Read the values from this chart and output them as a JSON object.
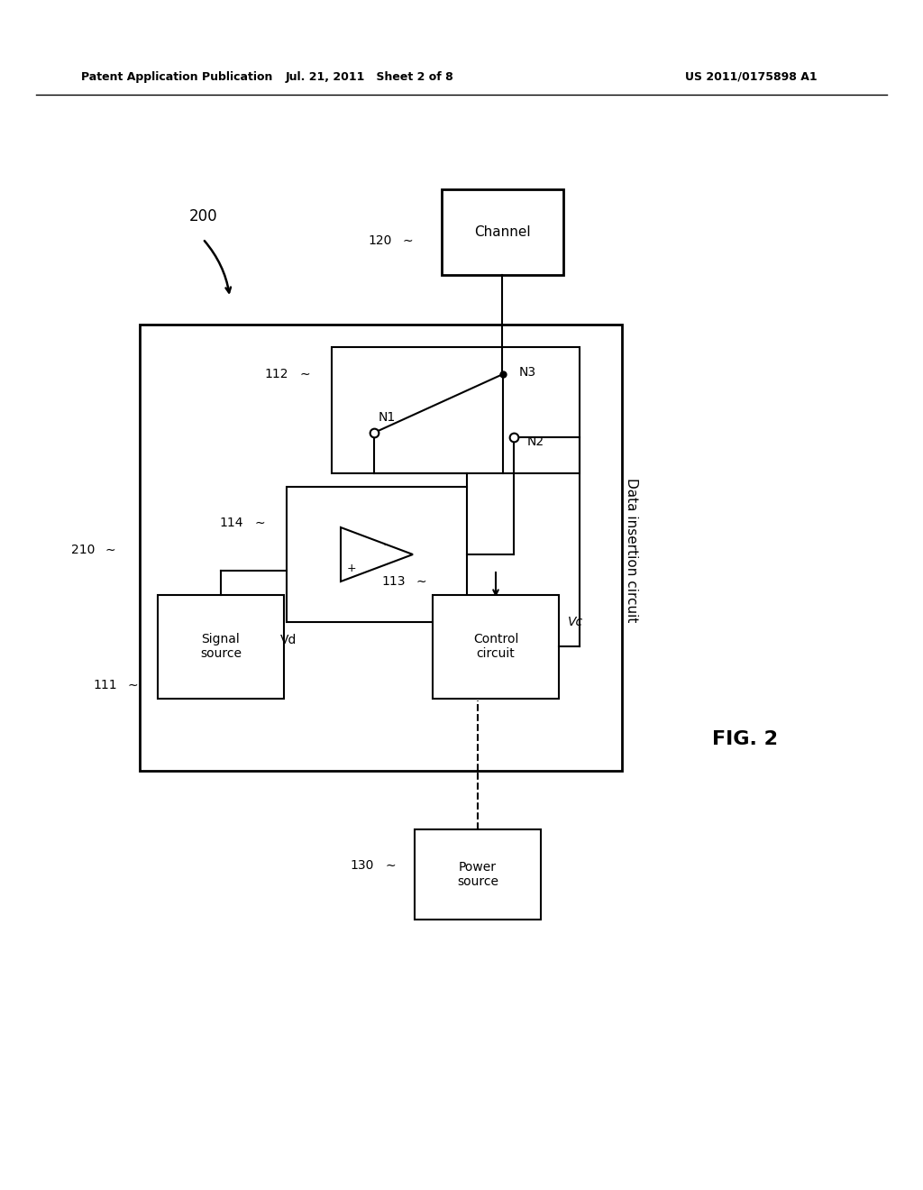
{
  "bg_color": "#ffffff",
  "text_color": "#000000",
  "header_left": "Patent Application Publication",
  "header_center": "Jul. 21, 2011   Sheet 2 of 8",
  "header_right": "US 2011/0175898 A1",
  "fig_label": "FIG. 2",
  "label_200": "200",
  "label_210": "210",
  "label_120": "120",
  "label_130": "130",
  "label_111": "111",
  "label_112": "112",
  "label_113": "113",
  "label_114": "114",
  "label_N1": "N1",
  "label_N2": "N2",
  "label_N3": "N3",
  "label_Vd": "Vd",
  "label_Vc": "Vc",
  "box_210_text": "Data insertion circuit",
  "box_channel_text": "Channel",
  "box_signal_text": "Signal\nsource",
  "box_control_text": "Control\ncircuit",
  "box_power_text": "Power\nsource"
}
